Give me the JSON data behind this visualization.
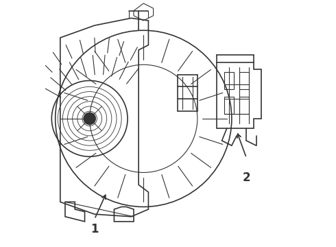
{
  "background_color": "#ffffff",
  "line_color": "#333333",
  "label1": "1",
  "label2": "2",
  "figsize": [
    4.9,
    3.6
  ],
  "dpi": 100
}
